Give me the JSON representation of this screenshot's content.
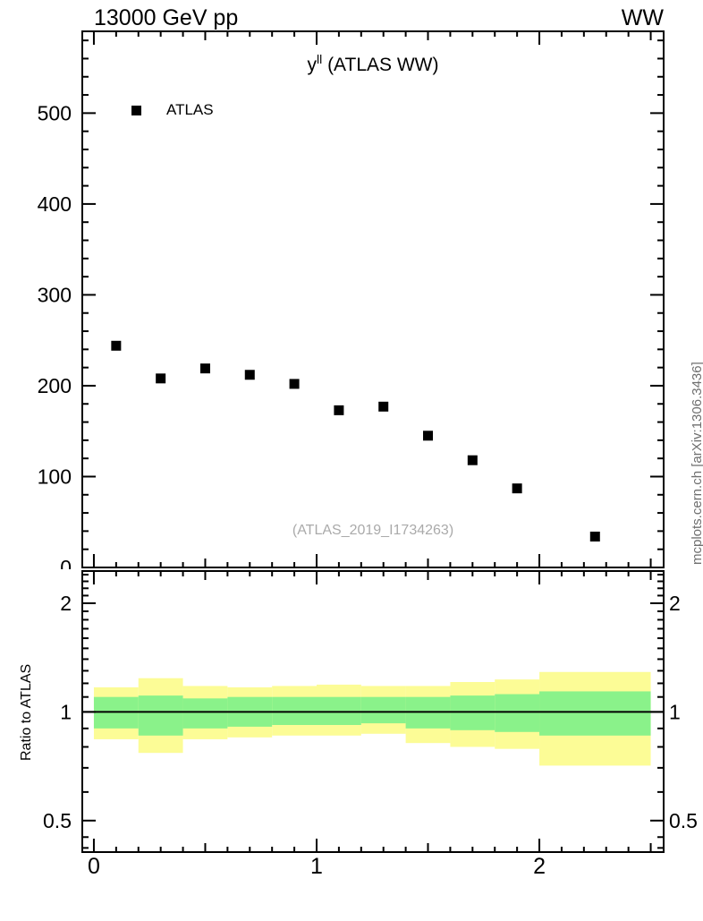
{
  "header": {
    "left_title": "13000 GeV pp",
    "right_title": "WW"
  },
  "main_panel": {
    "title": {
      "base": "y",
      "superscript": "ll",
      "suffix": " (ATLAS WW)"
    },
    "legend": {
      "items": [
        {
          "label": "ATLAS",
          "marker": "filled-square",
          "color": "#000000"
        }
      ]
    },
    "watermark": "(ATLAS_2019_I1734263)"
  },
  "ratio_panel": {
    "ylabel": "Ratio to ATLAS"
  },
  "side_caption": {
    "text": "mcplots.cern.ch [arXiv:1306.3436]"
  },
  "colors": {
    "marker": "#000000",
    "band_yellow": "#fcfc96",
    "band_green": "#8af28a",
    "watermark": "#aaaaaa",
    "side_caption": "#6f6f6f"
  },
  "chart_data": {
    "type": "scatter",
    "title": "y^ll (ATLAS WW)",
    "xlabel": "",
    "ylabel": "",
    "legend_position": "top-left-inside",
    "grid": false,
    "x_range": [
      -0.052,
      2.558
    ],
    "x_ticks_labeled": [
      0,
      1,
      2
    ],
    "x_tick_minor_step": 0.1,
    "x_tick_medium_step": 0.5,
    "x_minor_range": [
      0,
      2.5
    ],
    "main": {
      "y_range": [
        0,
        590
      ],
      "y_ticks_labeled": [
        0,
        100,
        200,
        300,
        400,
        500
      ],
      "y_tick_minor_step": 20,
      "series": [
        {
          "name": "ATLAS",
          "marker": "filled-square",
          "color": "#000000",
          "x": [
            0.1,
            0.3,
            0.5,
            0.7,
            0.9,
            1.1,
            1.3,
            1.5,
            1.7,
            1.9,
            2.25
          ],
          "y": [
            244,
            208,
            219,
            212,
            202,
            173,
            177,
            145,
            118,
            87,
            34
          ]
        }
      ]
    },
    "ratio": {
      "y_scale": "log",
      "y_range": [
        0.409,
        2.456
      ],
      "y_ticks_labeled": [
        0.5,
        1,
        2
      ],
      "y_ticks_minor": [
        0.42,
        0.45,
        0.6,
        0.7,
        0.8,
        0.9,
        1.1,
        1.2,
        1.3,
        1.4,
        1.5,
        1.6,
        1.7,
        1.8,
        1.9,
        2.1,
        2.2,
        2.3,
        2.4
      ],
      "reference_line": 1,
      "bin_edges": [
        0,
        0.2,
        0.4,
        0.6,
        0.8,
        1.0,
        1.2,
        1.4,
        1.6,
        1.8,
        2.0,
        2.5
      ],
      "bands": {
        "yellow": {
          "name": "data-uncertainty-outer",
          "hi": [
            1.17,
            1.24,
            1.18,
            1.17,
            1.18,
            1.19,
            1.18,
            1.18,
            1.21,
            1.23,
            1.29
          ],
          "lo": [
            0.84,
            0.77,
            0.84,
            0.85,
            0.86,
            0.86,
            0.87,
            0.82,
            0.8,
            0.79,
            0.71
          ]
        },
        "green": {
          "name": "data-uncertainty-inner",
          "hi": [
            1.1,
            1.11,
            1.09,
            1.1,
            1.1,
            1.1,
            1.1,
            1.1,
            1.11,
            1.12,
            1.14
          ],
          "lo": [
            0.9,
            0.86,
            0.9,
            0.91,
            0.92,
            0.92,
            0.93,
            0.9,
            0.89,
            0.88,
            0.86
          ]
        }
      }
    }
  }
}
